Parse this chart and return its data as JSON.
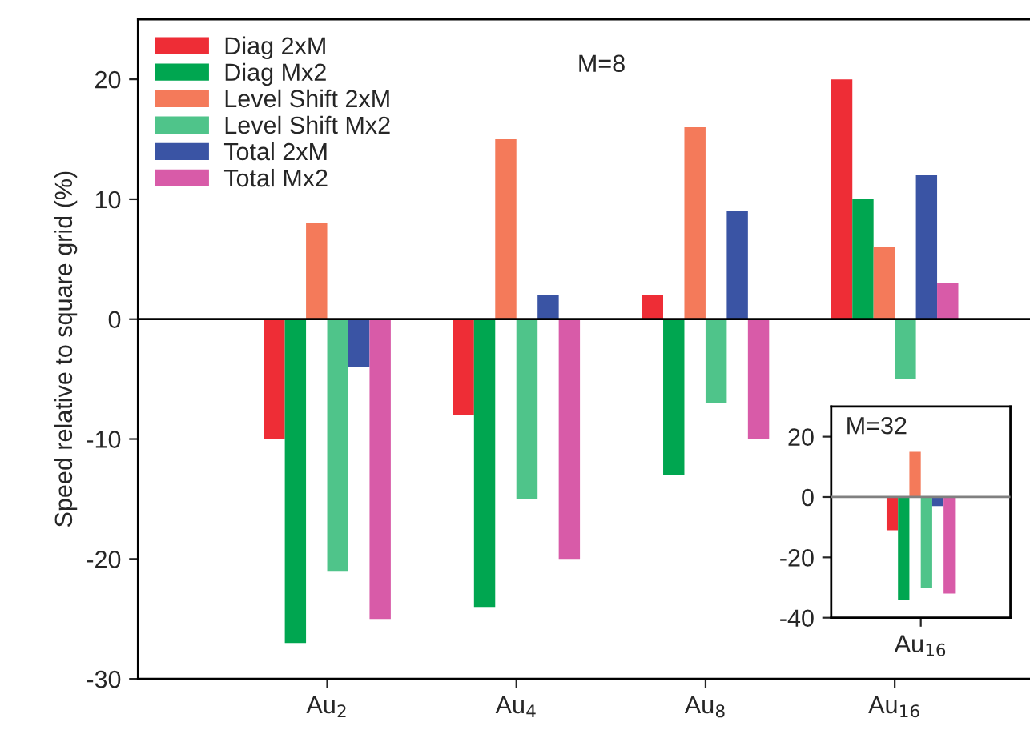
{
  "chart_data": [
    {
      "type": "bar",
      "categories": [
        "Au$_{2}$",
        "Au$_{4}$",
        "Au$_{8}$",
        "Au$_{16}$"
      ],
      "ylabel": "Speed relative to square grid (%)",
      "ylim": [
        -30,
        25
      ],
      "yticks": [
        -30,
        -20,
        -10,
        0,
        10,
        20
      ],
      "legend": "top left",
      "grid": false,
      "annotations": [
        "M=8"
      ],
      "ref_lines": [
        {
          "axis": "y",
          "value": 0,
          "color": "#000000"
        }
      ],
      "series": [
        {
          "name": "Diag 2xM",
          "color": "#ee2d36",
          "values": [
            -10,
            -8,
            2,
            20
          ]
        },
        {
          "name": "Diag Mx2",
          "color": "#00a650",
          "values": [
            -27,
            -24,
            -13,
            10
          ]
        },
        {
          "name": "Level Shift 2xM",
          "color": "#f47a5a",
          "values": [
            8,
            15,
            16,
            6
          ]
        },
        {
          "name": "Level Shift Mx2",
          "color": "#4fc48a",
          "values": [
            -21,
            -15,
            -7,
            -5
          ]
        },
        {
          "name": "Total 2xM",
          "color": "#3a54a4",
          "values": [
            -4,
            2,
            9,
            12
          ]
        },
        {
          "name": "Total Mx2",
          "color": "#d85ba8",
          "values": [
            -25,
            -20,
            -10,
            3
          ]
        }
      ]
    },
    {
      "type": "bar",
      "categories": [
        "Au$_{16}$"
      ],
      "ylim": [
        -40,
        30
      ],
      "yticks": [
        -40,
        -20,
        0,
        20
      ],
      "grid": false,
      "annotations": [
        "M=32"
      ],
      "ref_lines": [
        {
          "axis": "y",
          "value": 0,
          "color": "#808080"
        }
      ],
      "series": [
        {
          "color": "#ee2d36",
          "values": [
            -11
          ]
        },
        {
          "color": "#00a650",
          "values": [
            -34
          ]
        },
        {
          "color": "#f47a5a",
          "values": [
            15
          ]
        },
        {
          "color": "#4fc48a",
          "values": [
            -30
          ]
        },
        {
          "color": "#3a54a4",
          "values": [
            -3
          ]
        },
        {
          "color": "#d85ba8",
          "values": [
            -32
          ]
        }
      ]
    }
  ]
}
